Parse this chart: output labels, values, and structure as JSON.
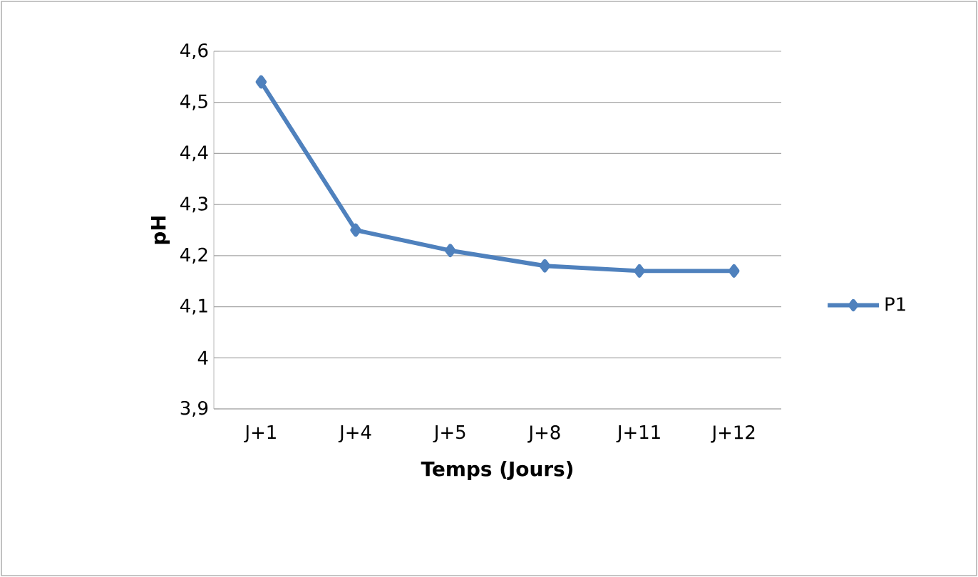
{
  "chart_data": {
    "type": "line",
    "xlabel": "Temps (Jours)",
    "ylabel": "pH",
    "categories": [
      "J+1",
      "J+4",
      "J+5",
      "J+8",
      "J+11",
      "J+12"
    ],
    "series": [
      {
        "name": "P1",
        "color": "#4f81bd",
        "values": [
          4.54,
          4.25,
          4.21,
          4.18,
          4.17,
          4.17
        ]
      }
    ],
    "ylim": [
      3.9,
      4.6
    ],
    "yticks": [
      {
        "value": 3.9,
        "label": "3,9"
      },
      4,
      {
        "value": 4.1,
        "label": "4,1"
      },
      {
        "value": 4.2,
        "label": "4,2"
      },
      {
        "value": 4.3,
        "label": "4,3"
      },
      {
        "value": 4.4,
        "label": "4,4"
      },
      {
        "value": 4.5,
        "label": "4,5"
      },
      {
        "value": 4.6,
        "label": "4,6"
      }
    ],
    "grid": "y",
    "legend": "right",
    "marker": "diamond",
    "line_style": "solid"
  }
}
